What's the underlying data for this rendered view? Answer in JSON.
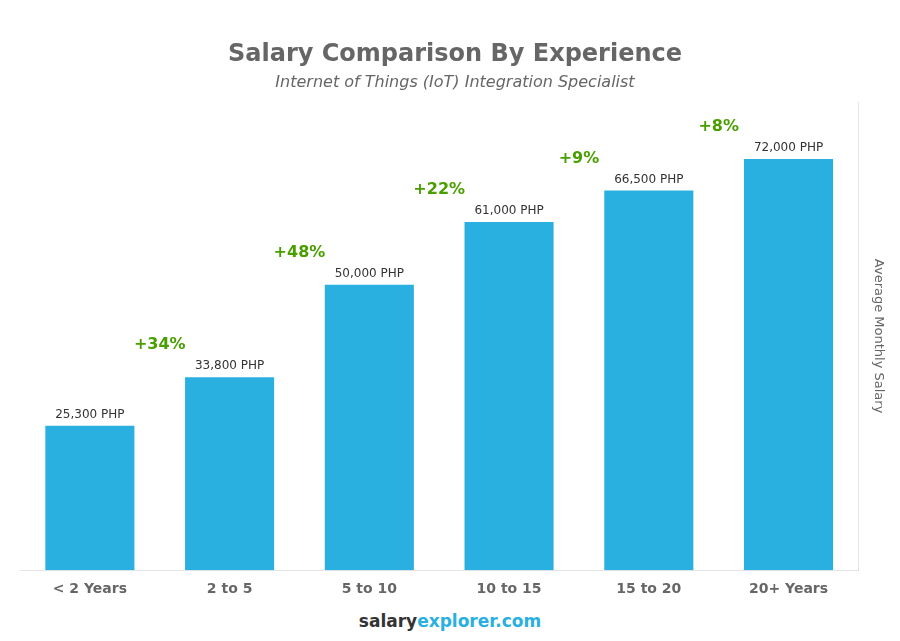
{
  "chart_data": {
    "type": "bar",
    "title": "Salary Comparison By Experience",
    "subtitle": "Internet of Things (IoT) Integration Specialist",
    "ylabel": "Average Monthly Salary",
    "categories": [
      "< 2 Years",
      "2 to 5",
      "5 to 10",
      "10 to 15",
      "15 to 20",
      "20+ Years"
    ],
    "values": [
      25300,
      33800,
      50000,
      61000,
      66500,
      72000
    ],
    "value_labels": [
      "25,300 PHP",
      "33,800 PHP",
      "50,000 PHP",
      "61,000 PHP",
      "66,500 PHP",
      "72,000 PHP"
    ],
    "data_labels": true,
    "annotations": [
      "+34%",
      "+48%",
      "+22%",
      "+9%",
      "+8%"
    ],
    "footer": [
      "salary",
      "explorer.com"
    ],
    "color": "#2ab0e0",
    "ylim": [
      0,
      82000
    ],
    "grid": false,
    "tick_labels": "x"
  }
}
